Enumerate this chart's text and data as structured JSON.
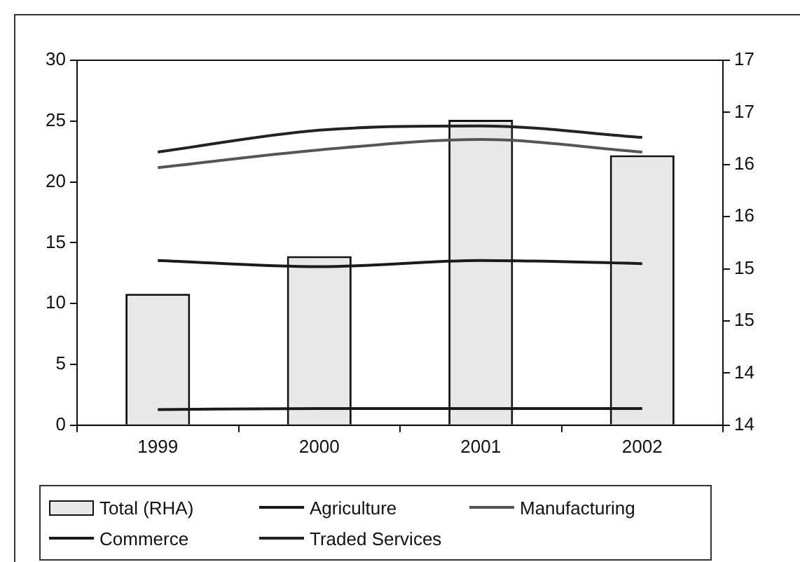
{
  "chart_data": {
    "type": "bar",
    "categories": [
      "1999",
      "2000",
      "2001",
      "2002"
    ],
    "series": [
      {
        "name": "Total (RHA)",
        "color": "#e8e8e8",
        "values": [
          10.8,
          13.9,
          25.1,
          22.2
        ]
      },
      {
        "name": "Agriculture",
        "type": "line",
        "axis": "y2",
        "color": "#1a1a1a",
        "values": [
          14.15,
          14.16,
          14.16,
          14.16
        ]
      },
      {
        "name": "Manufacturing",
        "type": "line",
        "axis": "y2",
        "color": "#555555",
        "values": [
          16.47,
          16.64,
          16.74,
          16.62
        ]
      },
      {
        "name": "Commerce",
        "type": "line",
        "axis": "y2",
        "color": "#1a1a1a",
        "values": [
          15.58,
          15.52,
          15.58,
          15.55
        ]
      },
      {
        "name": "Traded Services",
        "type": "line",
        "axis": "y2",
        "color": "#222222",
        "values": [
          16.62,
          16.83,
          16.87,
          16.76
        ]
      }
    ],
    "ylim": [
      0,
      30
    ],
    "yticks": [
      0,
      5,
      10,
      15,
      20,
      25,
      30
    ],
    "y2lim": [
      14,
      17.5
    ],
    "y2ticks": [
      {
        "value": 14,
        "label": "14"
      },
      {
        "value": 14.5,
        "label": "14"
      },
      {
        "value": 15,
        "label": "15"
      },
      {
        "value": 15.5,
        "label": "15"
      },
      {
        "value": 16,
        "label": "16"
      },
      {
        "value": 16.5,
        "label": "16"
      },
      {
        "value": 17,
        "label": "17"
      },
      {
        "value": 17.5,
        "label": "17"
      }
    ],
    "legend": "bottom",
    "grid": false,
    "marker": "none",
    "line_style": "solid"
  }
}
